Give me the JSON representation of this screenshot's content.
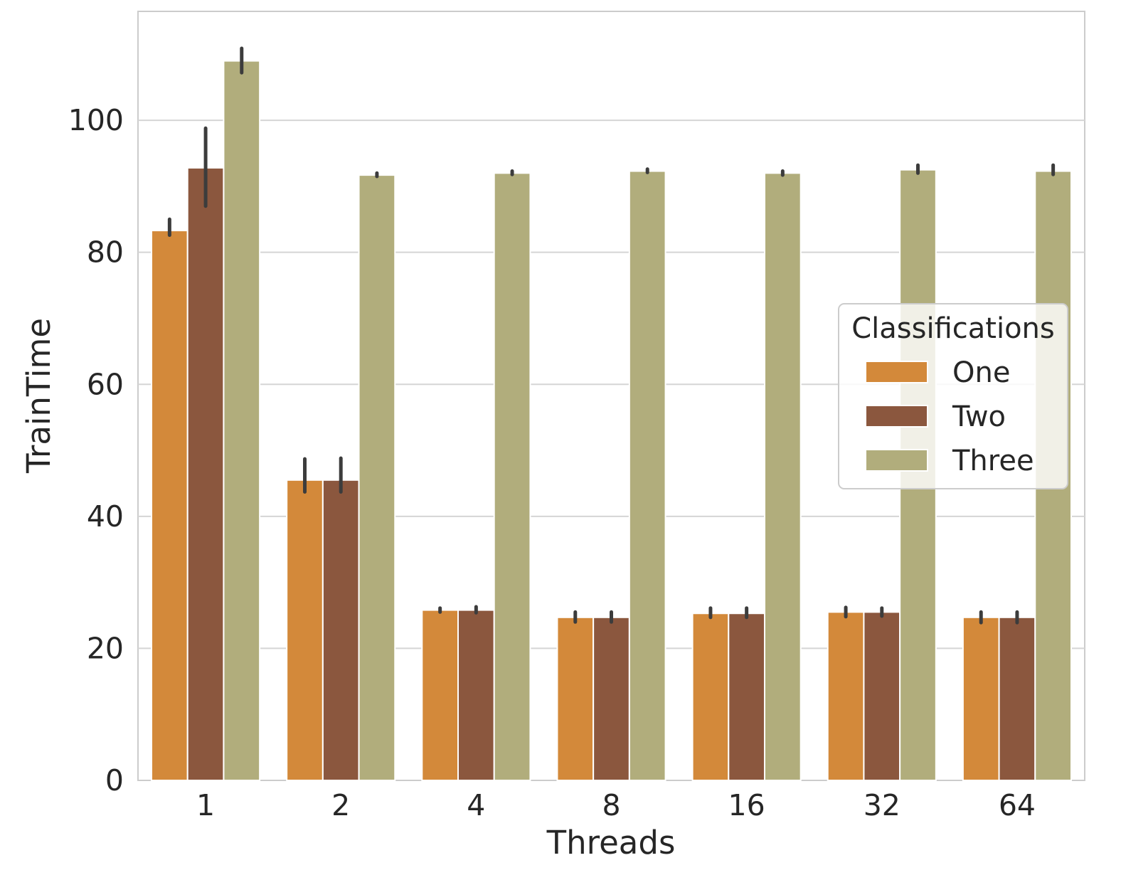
{
  "chart_data": {
    "type": "bar",
    "xlabel": "Threads",
    "ylabel": "TrainTime",
    "categories": [
      "1",
      "2",
      "4",
      "8",
      "16",
      "32",
      "64"
    ],
    "ylim": [
      0,
      116.5
    ],
    "yticks": [
      0,
      20,
      40,
      60,
      80,
      100
    ],
    "grid": "horizontal",
    "legend": {
      "title": "Classifications",
      "placement": "center-right"
    },
    "series": [
      {
        "name": "One",
        "color": "#d3893a",
        "values": [
          83.3,
          45.5,
          25.8,
          24.7,
          25.3,
          25.5,
          24.7
        ],
        "error_low": [
          82.6,
          43.7,
          25.5,
          24.0,
          24.7,
          24.8,
          23.9
        ],
        "error_high": [
          85.0,
          48.7,
          26.1,
          25.5,
          26.1,
          26.2,
          25.5
        ]
      },
      {
        "name": "Two",
        "color": "#8b573e",
        "values": [
          92.8,
          45.5,
          25.8,
          24.7,
          25.3,
          25.5,
          24.7
        ],
        "error_low": [
          87.0,
          43.7,
          25.4,
          24.0,
          24.7,
          24.9,
          23.9
        ],
        "error_high": [
          98.8,
          48.8,
          26.3,
          25.5,
          26.1,
          26.1,
          25.5
        ]
      },
      {
        "name": "Three",
        "color": "#b1ad7c",
        "values": [
          109.0,
          91.7,
          92.0,
          92.3,
          92.0,
          92.5,
          92.3
        ],
        "error_low": [
          107.2,
          91.5,
          91.8,
          92.1,
          91.7,
          92.0,
          91.8
        ],
        "error_high": [
          110.9,
          92.0,
          92.3,
          92.6,
          92.3,
          93.2,
          93.2
        ]
      }
    ]
  }
}
